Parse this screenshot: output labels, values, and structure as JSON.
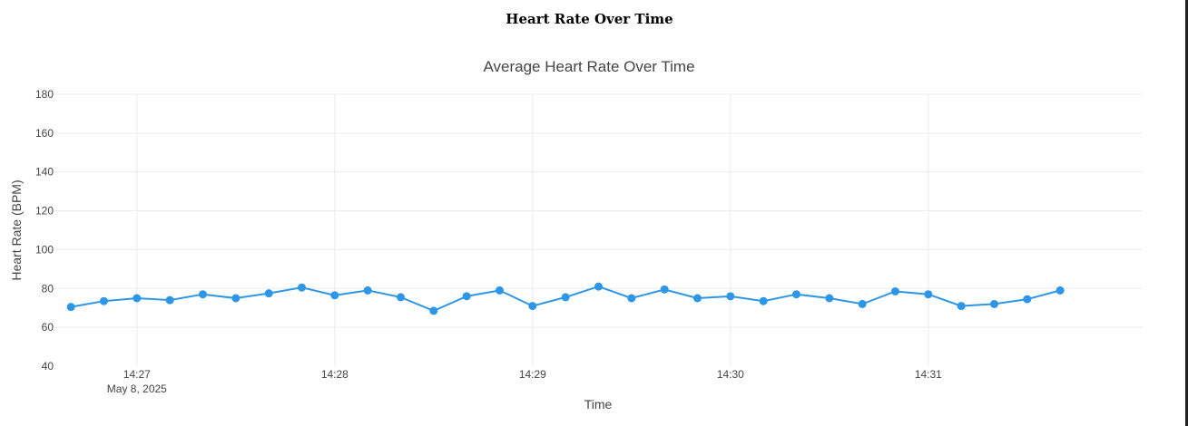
{
  "page": {
    "title": "Heart Rate Over Time"
  },
  "chart_data": {
    "type": "line",
    "title": "Average Heart Rate Over Time",
    "xlabel": "Time",
    "ylabel": "Heart Rate (BPM)",
    "ylim": [
      40,
      180
    ],
    "yticks": [
      40,
      60,
      80,
      100,
      120,
      140,
      160,
      180
    ],
    "xlim": [
      "14:26:35",
      "14:32:05"
    ],
    "xticks": [
      {
        "value": "14:27:00",
        "label": "14:27",
        "sublabel": "May 8, 2025"
      },
      {
        "value": "14:28:00",
        "label": "14:28"
      },
      {
        "value": "14:29:00",
        "label": "14:29"
      },
      {
        "value": "14:30:00",
        "label": "14:30"
      },
      {
        "value": "14:31:00",
        "label": "14:31"
      }
    ],
    "grid": true,
    "series": [
      {
        "color": "#2e96e6",
        "x": [
          "14:26:40",
          "14:26:50",
          "14:27:00",
          "14:27:10",
          "14:27:20",
          "14:27:30",
          "14:27:40",
          "14:27:50",
          "14:28:00",
          "14:28:10",
          "14:28:20",
          "14:28:30",
          "14:28:40",
          "14:28:50",
          "14:29:00",
          "14:29:10",
          "14:29:20",
          "14:29:30",
          "14:29:40",
          "14:29:50",
          "14:30:00",
          "14:30:10",
          "14:30:20",
          "14:30:30",
          "14:30:40",
          "14:30:50",
          "14:31:00",
          "14:31:10",
          "14:31:20",
          "14:31:30",
          "14:31:40"
        ],
        "y": [
          70.5,
          73.5,
          75,
          74,
          77,
          75,
          77.5,
          80.5,
          76.5,
          79,
          75.5,
          68.5,
          76,
          79,
          71,
          75.5,
          81,
          75,
          79.5,
          75,
          76,
          73.5,
          77,
          75,
          72,
          78.5,
          77,
          71,
          72,
          74.5,
          79
        ]
      }
    ]
  }
}
